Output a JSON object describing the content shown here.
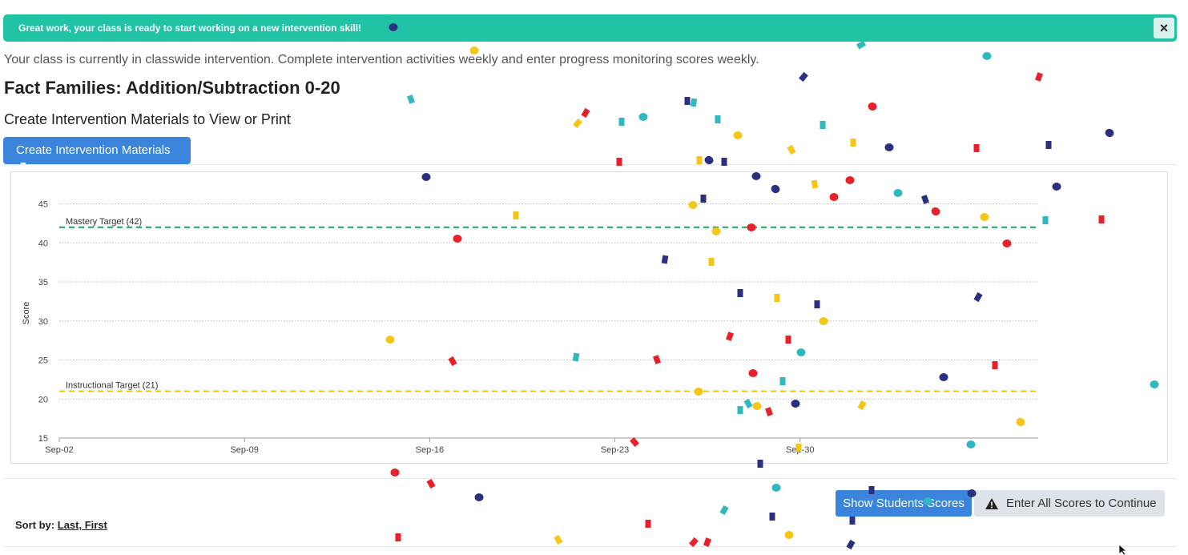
{
  "banner": {
    "message": "Great work, your class is ready to start working on a new intervention skill!",
    "close_glyph": "×"
  },
  "info_text": "Your class is currently in classwide intervention. Complete intervention activities weekly and enter progress monitoring scores weekly.",
  "skill_title": "Fact Families: Addition/Subtraction 0-20",
  "materials": {
    "heading": "Create Intervention Materials to View or Print",
    "button_label": "Create Intervention Materials"
  },
  "chart_data": {
    "type": "line",
    "ylabel": "Score",
    "xlabel": "",
    "ylim": [
      15,
      47
    ],
    "yticks": [
      15,
      20,
      25,
      30,
      35,
      40,
      45
    ],
    "xlim": [
      "2023-09-02",
      "2023-10-09"
    ],
    "x_tick_labels": [
      "Sep-02",
      "Sep-09",
      "Sep-16",
      "Sep-23",
      "Sep-30"
    ],
    "grid": true,
    "reference_lines": [
      {
        "name": "Mastery Target (42)",
        "value": 42,
        "color": "#20a35a"
      },
      {
        "name": "Instructional Target (21)",
        "value": 21,
        "color": "#f2c21b"
      }
    ],
    "series": []
  },
  "actions": {
    "show_scores_label": "Show Students Scores",
    "enter_scores_label": "Enter All Scores to Continue"
  },
  "sort": {
    "label": "Sort by:",
    "value": "Last, First"
  },
  "icons": {
    "close": "close-icon",
    "caret": "caret-down-icon",
    "warning": "warning-icon",
    "cursor": "mouse-cursor-icon"
  },
  "colors": {
    "banner": "#20c3a6",
    "primary_button": "#3b84db",
    "secondary_button": "#dde3e8",
    "mastery_line": "#20a35a",
    "instructional_line": "#f2c21b",
    "confetti": [
      "#2b2f7f",
      "#f5c518",
      "#e8202a",
      "#2fb8c0"
    ]
  }
}
